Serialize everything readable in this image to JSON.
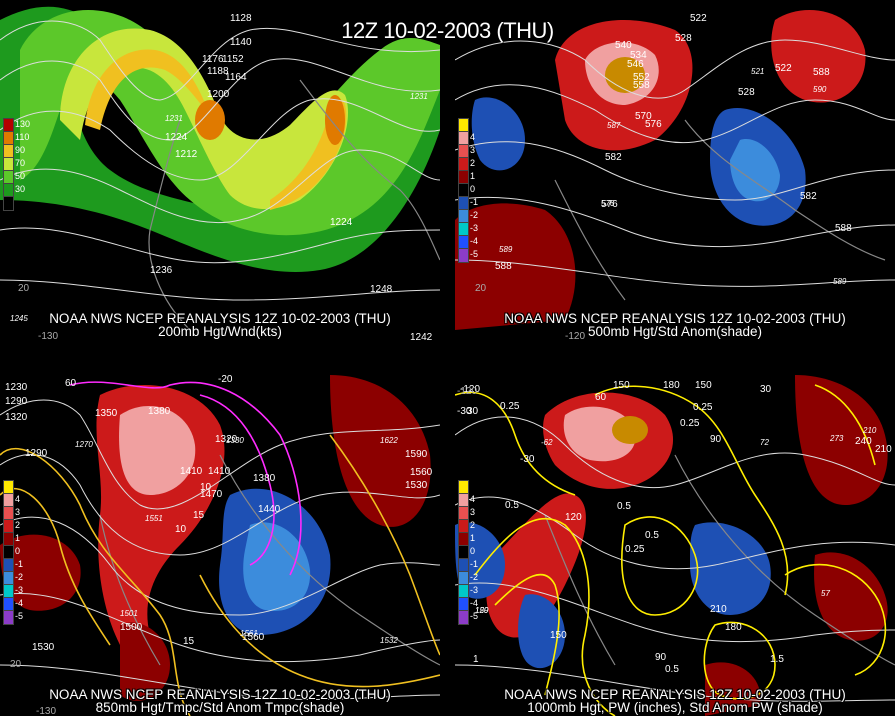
{
  "title": "12Z 10-02-2003 (THU)",
  "panels": {
    "p1": {
      "caption1": "NOAA NWS NCEP REANALYSIS 12Z 10-02-2003 (THU)",
      "caption2": "200mb Hgt/Wnd(kts)",
      "legend": [
        {
          "label": "130",
          "color": "#b30000"
        },
        {
          "label": "110",
          "color": "#e07a00"
        },
        {
          "label": "90",
          "color": "#f0c020"
        },
        {
          "label": "70",
          "color": "#c8e63c"
        },
        {
          "label": "50",
          "color": "#5cc82a"
        },
        {
          "label": "30",
          "color": "#1e9a1e"
        },
        {
          "label": "",
          "color": "#000000"
        }
      ],
      "contour_labels": [
        "1128",
        "1140",
        "1176",
        "1152",
        "1188",
        "1164",
        "1200",
        "1224",
        "1212",
        "1224",
        "1236",
        "1248",
        "1242"
      ],
      "highs": [
        "1231",
        "1231",
        "1245"
      ],
      "lon_labels": [
        "-130",
        "20"
      ]
    },
    "p2": {
      "caption1": "NOAA NWS NCEP REANALYSIS 12Z 10-02-2003 (THU)",
      "caption2": "500mb Hgt/Std Anom(shade)",
      "legend": [
        {
          "label": "",
          "color": "#ffe800"
        },
        {
          "label": "4",
          "color": "#f0a0a0"
        },
        {
          "label": "3",
          "color": "#e85050"
        },
        {
          "label": "2",
          "color": "#cc1a1a"
        },
        {
          "label": "1",
          "color": "#8c0000"
        },
        {
          "label": "0",
          "color": "#000000"
        },
        {
          "label": "-1",
          "color": "#1e50b4"
        },
        {
          "label": "-2",
          "color": "#3c8cdc"
        },
        {
          "label": "-3",
          "color": "#00c8c8"
        },
        {
          "label": "-4",
          "color": "#2050ff"
        },
        {
          "label": "-5",
          "color": "#8c3cc8"
        }
      ],
      "contour_labels": [
        "522",
        "528",
        "540",
        "534",
        "546",
        "522",
        "552",
        "558",
        "570",
        "576",
        "582",
        "528",
        "582",
        "588",
        "588",
        "588",
        "576"
      ],
      "highs": [
        "587",
        "589",
        "590",
        "589"
      ],
      "lows": [
        "521",
        "576"
      ],
      "lon_labels": [
        "-120",
        "20"
      ]
    },
    "p3": {
      "caption1": "NOAA NWS NCEP REANALYSIS 12Z 10-02-2003 (THU)",
      "caption2": "850mb Hgt/Tmpc/Std Anom Tmpc(shade)",
      "legend": [
        {
          "label": "",
          "color": "#ffe800"
        },
        {
          "label": "4",
          "color": "#f0a0a0"
        },
        {
          "label": "3",
          "color": "#e85050"
        },
        {
          "label": "2",
          "color": "#cc1a1a"
        },
        {
          "label": "1",
          "color": "#8c0000"
        },
        {
          "label": "0",
          "color": "#000000"
        },
        {
          "label": "-1",
          "color": "#1e50b4"
        },
        {
          "label": "-2",
          "color": "#3c8cdc"
        },
        {
          "label": "-3",
          "color": "#00c8c8"
        },
        {
          "label": "-4",
          "color": "#2050ff"
        },
        {
          "label": "-5",
          "color": "#8c3cc8"
        }
      ],
      "contour_labels": [
        "1230",
        "1290",
        "1320",
        "1350",
        "1380",
        "1410",
        "1410",
        "1470",
        "1440",
        "1380",
        "1500",
        "1560",
        "1530",
        "1590",
        "1560",
        "1530",
        "1320",
        "1290",
        "15",
        "10",
        "10",
        "15",
        "-20",
        "60"
      ],
      "highs": [
        "1551",
        "1561",
        "1622",
        "1532"
      ],
      "lows": [
        "1270",
        "1330",
        "1501"
      ],
      "lon_labels": [
        "-130",
        "20"
      ]
    },
    "p4": {
      "caption1": "NOAA NWS NCEP REANALYSIS 12Z 10-02-2003 (THU)",
      "caption2": "1000mb Hgt, PW (inches), Std Anom PW (shade)",
      "legend": [
        {
          "label": "",
          "color": "#ffe800"
        },
        {
          "label": "4",
          "color": "#f0a0a0"
        },
        {
          "label": "3",
          "color": "#e85050"
        },
        {
          "label": "2",
          "color": "#cc1a1a"
        },
        {
          "label": "1",
          "color": "#8c0000"
        },
        {
          "label": "0",
          "color": "#000000"
        },
        {
          "label": "-1",
          "color": "#1e50b4"
        },
        {
          "label": "-2",
          "color": "#3c8cdc"
        },
        {
          "label": "-3",
          "color": "#00c8c8"
        },
        {
          "label": "-4",
          "color": "#2050ff"
        },
        {
          "label": "-5",
          "color": "#8c3cc8"
        }
      ],
      "contour_labels": [
        "-120",
        "-30",
        "30",
        "0.25",
        "-30",
        "60",
        "0.5",
        "150",
        "180",
        "150",
        "0.25",
        "30",
        "90",
        "0.25",
        "0.5",
        "120",
        "0.5",
        "0.25",
        "1",
        "210",
        "150",
        "180",
        "90",
        "0.5",
        "1.5",
        "240",
        "210"
      ],
      "highs": [
        "150",
        "273",
        "210",
        "129"
      ],
      "lows": [
        "-62",
        "72",
        "57"
      ],
      "lon_labels": [
        "-120"
      ]
    }
  }
}
